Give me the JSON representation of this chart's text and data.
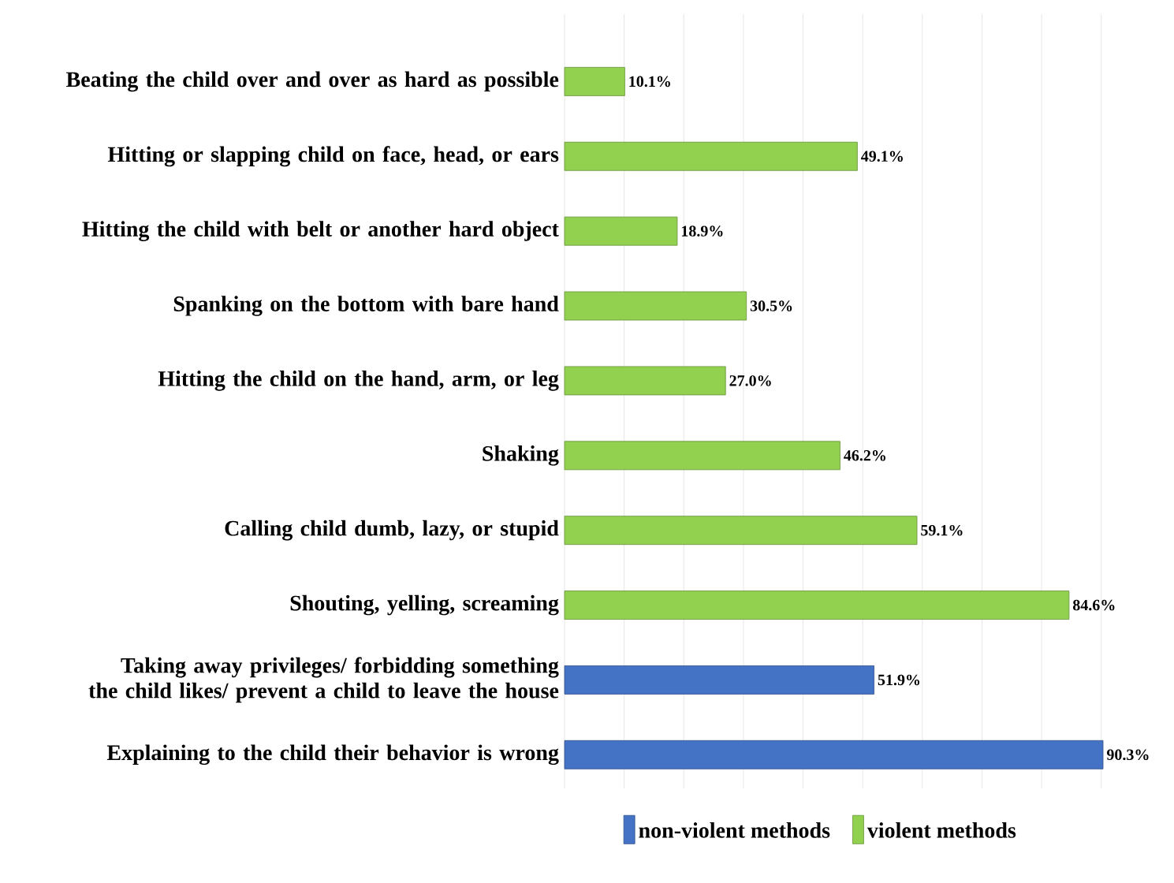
{
  "chart_data": {
    "type": "bar",
    "orientation": "horizontal",
    "categories": [
      "Beating the child over and over as hard as possible",
      "Hitting or slapping child on face, head, or ears",
      "Hitting the child with belt or another hard object",
      "Spanking on the bottom with bare hand",
      "Hitting the child on the hand, arm, or leg",
      "Shaking",
      "Calling child dumb, lazy, or stupid",
      "Shouting, yelling, screaming",
      "Taking away privileges/ forbidding something the child likes/ prevent a child to leave the house",
      "Explaining to the child their behavior is wrong"
    ],
    "series": [
      {
        "name": "non-violent methods",
        "color": "#4472c4",
        "values": [
          null,
          null,
          null,
          null,
          null,
          null,
          null,
          null,
          51.9,
          90.3
        ],
        "value_labels": [
          null,
          null,
          null,
          null,
          null,
          null,
          null,
          null,
          "51.9%",
          "90.3%"
        ]
      },
      {
        "name": "violent methods",
        "color": "#92d050",
        "values": [
          10.1,
          49.1,
          18.9,
          30.5,
          27.0,
          46.2,
          59.1,
          84.6,
          null,
          null
        ],
        "value_labels": [
          "10.1%",
          "49.1%",
          "18.9%",
          "30.5%",
          "27.0%",
          "46.2%",
          "59.1%",
          "84.6%",
          null,
          null
        ]
      }
    ],
    "grid": "x",
    "legend": "bottom",
    "tick_labels": "y"
  }
}
